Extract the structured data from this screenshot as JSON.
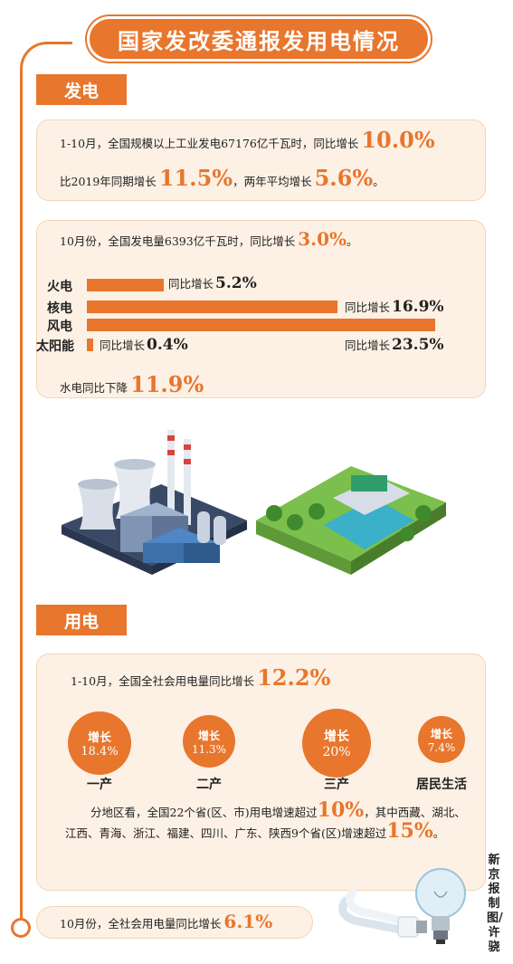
{
  "title": "国家发改委通报发用电情况",
  "generation": {
    "tag": "发电",
    "line1_text": "1-10月，全国规模以上工业发电67176亿千瓦时，同比增长",
    "line1_value": "10.0%",
    "line2_text_a": "比2019年同期增长",
    "line2_value_a": "11.5%",
    "line2_text_b": "，两年平均增长",
    "line2_value_b": "5.6%",
    "line2_end": "。",
    "oct_text": "10月份，全国发电量6393亿千瓦时，同比增长",
    "oct_value": "3.0%",
    "oct_end": "。",
    "yoy_prefix": "同比增长",
    "bars": [
      {
        "label": "火电",
        "value": 5.2,
        "display": "5.2%"
      },
      {
        "label": "核电",
        "value": 16.9,
        "display": "16.9%"
      },
      {
        "label": "风电",
        "value": 23.5,
        "display": "23.5%"
      },
      {
        "label": "太阳能",
        "value": 0.4,
        "display": "0.4%"
      }
    ],
    "hydro_text": "水电同比下降",
    "hydro_value": "11.9%"
  },
  "consumption": {
    "tag": "用电",
    "line1_text": "1-10月，全国全社会用电量同比增长",
    "line1_value": "12.2%",
    "circles": [
      {
        "top": "增长",
        "value": "18.4%",
        "label": "一产"
      },
      {
        "top": "增长",
        "value": "11.3%",
        "label": "二产"
      },
      {
        "top": "增长",
        "value": "20%",
        "label": "三产"
      },
      {
        "top": "增长",
        "value": "7.4%",
        "label": "居民生活"
      }
    ],
    "para_a": "分地区看，全国22个省(区、市)用电增速超过",
    "para_v1": "10%",
    "para_b": "，其中西藏、湖北、江西、青海、浙江、福建、四川、广东、陕西9个省(区)增速超过",
    "para_v2": "15%",
    "para_end": "。",
    "oct_text": "10月份，全社会用电量同比增长",
    "oct_value": "6.1%"
  },
  "credit": "新京报制图/许骁",
  "colors": {
    "accent": "#e8762d",
    "panel": "#fdf1e5"
  }
}
